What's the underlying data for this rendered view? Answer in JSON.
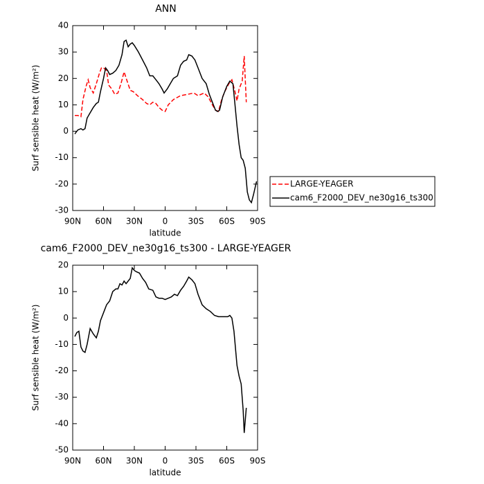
{
  "chart_data": [
    {
      "type": "line",
      "title": "ANN",
      "xlabel": "latitude",
      "ylabel": "Surf sensible heat (W/m²)",
      "xlim": [
        90,
        -90
      ],
      "ylim": [
        -30,
        40
      ],
      "xticks": [
        {
          "value": 90,
          "label": "90N"
        },
        {
          "value": 60,
          "label": "60N"
        },
        {
          "value": 30,
          "label": "30N"
        },
        0,
        {
          "value": -30,
          "label": "30S"
        },
        {
          "value": -60,
          "label": "60S"
        },
        {
          "value": -90,
          "label": "90S"
        }
      ],
      "yticks": [
        -30,
        -20,
        -10,
        0,
        10,
        20,
        30,
        40
      ],
      "legend": "right",
      "series": [
        {
          "name": "LARGE-YEAGER",
          "color": "#ff0000",
          "dashed": true,
          "x": [
            88,
            85,
            82,
            80,
            77,
            75,
            73,
            70,
            67,
            64,
            62,
            60,
            57,
            55,
            52,
            49,
            46,
            43,
            40,
            37,
            34,
            31,
            27,
            22,
            18,
            15,
            12,
            9,
            6,
            3,
            0,
            -3,
            -8,
            -15,
            -22,
            -28,
            -32,
            -38,
            -42,
            -46,
            -49,
            -52,
            -55,
            -58,
            -62,
            -65,
            -68,
            -70,
            -72,
            -75,
            -77,
            -79
          ],
          "values": [
            6,
            6,
            5.5,
            12,
            17,
            19.5,
            16.5,
            14.5,
            18,
            22,
            24,
            24,
            23,
            17.5,
            16,
            14,
            14.5,
            18,
            22.5,
            19,
            15.5,
            15,
            13.5,
            12,
            10.5,
            10,
            11,
            10.5,
            9,
            8,
            7.5,
            10,
            12,
            13.5,
            14,
            14.5,
            13.5,
            14.5,
            13,
            10,
            8,
            7.5,
            12,
            15,
            18,
            19.5,
            15,
            11.5,
            16,
            19,
            28.5,
            11
          ]
        },
        {
          "name": "cam6_F2000_DEV_ne30g16_ts300",
          "color": "#000000",
          "dashed": false,
          "x": [
            88,
            85,
            82,
            80,
            78,
            76,
            73,
            70,
            67,
            65,
            63,
            60,
            58,
            56,
            54,
            51,
            48,
            45,
            42,
            40,
            38,
            36,
            34,
            32,
            30,
            26,
            22,
            18,
            15,
            12,
            9,
            6,
            3,
            1,
            -2,
            -5,
            -8,
            -12,
            -15,
            -18,
            -21,
            -23,
            -26,
            -29,
            -32,
            -36,
            -40,
            -43,
            -46,
            -49,
            -51,
            -53,
            -56,
            -60,
            -63,
            -66,
            -68,
            -70,
            -72,
            -74,
            -76,
            -78,
            -80,
            -82,
            -84,
            -86,
            -89
          ],
          "values": [
            -1,
            0.5,
            1,
            0.5,
            1,
            5,
            7,
            9,
            10.5,
            11,
            15,
            20,
            24,
            23,
            21.5,
            22,
            23,
            25,
            29,
            34,
            34.5,
            32,
            33,
            33.5,
            32.5,
            30,
            27,
            24,
            21,
            21,
            19.5,
            18,
            16,
            14.5,
            16,
            18,
            20,
            21,
            25,
            26.5,
            27,
            29,
            28.5,
            27,
            24,
            20,
            18,
            14,
            11,
            8,
            7.5,
            8,
            13,
            17,
            19,
            18,
            10,
            2,
            -5,
            -10,
            -11,
            -14,
            -23,
            -26,
            -27,
            -24,
            -19
          ]
        }
      ]
    },
    {
      "type": "line",
      "title": "cam6_F2000_DEV_ne30g16_ts300 - LARGE-YEAGER",
      "xlabel": "latitude",
      "ylabel": "Surf sensible heat (W/m²)",
      "xlim": [
        90,
        -90
      ],
      "ylim": [
        -50,
        20
      ],
      "xticks": [
        {
          "value": 90,
          "label": "90N"
        },
        {
          "value": 60,
          "label": "60N"
        },
        {
          "value": 30,
          "label": "30N"
        },
        0,
        {
          "value": -30,
          "label": "30S"
        },
        {
          "value": -60,
          "label": "60S"
        },
        {
          "value": -90,
          "label": "90S"
        }
      ],
      "yticks": [
        -50,
        -40,
        -30,
        -20,
        -10,
        0,
        10,
        20
      ],
      "series": [
        {
          "color": "#000000",
          "dashed": false,
          "x": [
            88,
            86,
            84,
            82,
            80,
            78,
            76,
            73,
            70,
            67,
            65,
            63,
            60,
            57,
            54,
            51,
            48,
            46,
            44,
            42,
            40,
            38,
            36,
            34,
            32,
            30,
            28,
            25,
            22,
            19,
            16,
            12,
            9,
            6,
            3,
            0,
            -3,
            -6,
            -9,
            -12,
            -15,
            -18,
            -21,
            -23,
            -26,
            -29,
            -32,
            -36,
            -40,
            -44,
            -48,
            -52,
            -55,
            -58,
            -61,
            -63,
            -65,
            -67,
            -70,
            -72,
            -74,
            -76,
            -77,
            -79
          ],
          "values": [
            -7,
            -5.5,
            -5,
            -11,
            -12.5,
            -13,
            -10,
            -4,
            -6,
            -7.5,
            -5,
            -1,
            2,
            5,
            6.5,
            10,
            11,
            11,
            13,
            12.5,
            14,
            13,
            14,
            15,
            19,
            18,
            17.5,
            17,
            15,
            13.5,
            11,
            10.5,
            8,
            7.5,
            7.5,
            7,
            7.5,
            8,
            9,
            8.5,
            10.5,
            12,
            14,
            15.5,
            14.5,
            13,
            9,
            5,
            3.5,
            2.5,
            1,
            0.5,
            0.5,
            0.5,
            0.5,
            1,
            0,
            -5,
            -18,
            -22,
            -25,
            -35,
            -43.5,
            -34
          ]
        }
      ]
    }
  ]
}
